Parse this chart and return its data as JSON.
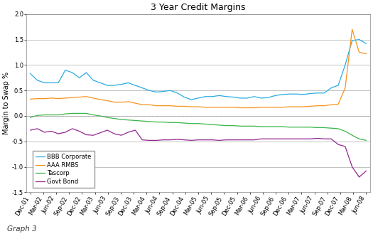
{
  "title": "3 Year Credit Margins",
  "ylabel": "Margin to Swap %",
  "footnote": "Graph 3",
  "ylim": [
    -1.5,
    2.0
  ],
  "yticks": [
    -1.5,
    -1.0,
    -0.5,
    0.0,
    0.5,
    1.0,
    1.5,
    2.0
  ],
  "x_labels": [
    "Dec-01",
    "Mar-02",
    "Jun-02",
    "Sep-02",
    "Dec-02",
    "Mar-03",
    "Jun-03",
    "Sep-03",
    "Dec-03",
    "Mar-04",
    "Jun-04",
    "Sep-04",
    "Dec-04",
    "Mar-05",
    "Jun-05",
    "Sep-05",
    "Dec-05",
    "Mar-06",
    "Jun-06",
    "Sep-06",
    "Dec-06",
    "Mar-07",
    "Jun-07",
    "Sep-07",
    "Dec-07",
    "Mar-08",
    "Jun-08"
  ],
  "colors": {
    "bbb": "#29ABE2",
    "aaa": "#F7941D",
    "tascorp": "#39B54A",
    "govt": "#92278F"
  },
  "legend": [
    "BBB Corporate",
    "AAA RMBS",
    "Tascorp",
    "Govt Bond"
  ],
  "bbb_data": [
    0.83,
    0.7,
    0.65,
    0.65,
    0.65,
    0.9,
    0.85,
    0.75,
    0.85,
    0.7,
    0.65,
    0.6,
    0.6,
    0.62,
    0.65,
    0.6,
    0.55,
    0.5,
    0.47,
    0.48,
    0.5,
    0.45,
    0.37,
    0.32,
    0.35,
    0.38,
    0.38,
    0.4,
    0.38,
    0.37,
    0.35,
    0.35,
    0.38,
    0.35,
    0.36,
    0.4,
    0.42,
    0.43,
    0.43,
    0.42,
    0.44,
    0.45,
    0.45,
    0.55,
    0.6,
    1.0,
    1.48,
    1.5,
    1.42
  ],
  "aaa_data": [
    0.33,
    0.34,
    0.34,
    0.35,
    0.34,
    0.35,
    0.36,
    0.37,
    0.38,
    0.35,
    0.32,
    0.3,
    0.27,
    0.27,
    0.28,
    0.25,
    0.22,
    0.22,
    0.2,
    0.2,
    0.2,
    0.19,
    0.19,
    0.18,
    0.18,
    0.17,
    0.17,
    0.17,
    0.17,
    0.17,
    0.16,
    0.16,
    0.16,
    0.17,
    0.17,
    0.17,
    0.17,
    0.18,
    0.18,
    0.18,
    0.19,
    0.2,
    0.2,
    0.22,
    0.23,
    0.55,
    1.7,
    1.25,
    1.22
  ],
  "tascorp_data": [
    -0.03,
    0.01,
    0.02,
    0.02,
    0.02,
    0.04,
    0.05,
    0.05,
    0.05,
    0.02,
    0.0,
    -0.03,
    -0.05,
    -0.07,
    -0.08,
    -0.09,
    -0.1,
    -0.11,
    -0.12,
    -0.12,
    -0.13,
    -0.13,
    -0.14,
    -0.15,
    -0.15,
    -0.16,
    -0.17,
    -0.18,
    -0.19,
    -0.19,
    -0.2,
    -0.2,
    -0.2,
    -0.21,
    -0.21,
    -0.21,
    -0.21,
    -0.22,
    -0.22,
    -0.22,
    -0.22,
    -0.23,
    -0.23,
    -0.24,
    -0.25,
    -0.3,
    -0.38,
    -0.45,
    -0.48
  ],
  "govt_data": [
    -0.28,
    -0.25,
    -0.32,
    -0.3,
    -0.35,
    -0.32,
    -0.25,
    -0.3,
    -0.37,
    -0.38,
    -0.33,
    -0.28,
    -0.35,
    -0.38,
    -0.32,
    -0.28,
    -0.47,
    -0.48,
    -0.48,
    -0.47,
    -0.47,
    -0.46,
    -0.47,
    -0.48,
    -0.47,
    -0.47,
    -0.47,
    -0.48,
    -0.47,
    -0.47,
    -0.47,
    -0.47,
    -0.47,
    -0.45,
    -0.45,
    -0.45,
    -0.45,
    -0.45,
    -0.45,
    -0.45,
    -0.45,
    -0.44,
    -0.45,
    -0.45,
    -0.56,
    -0.6,
    -1.0,
    -1.2,
    -1.08
  ],
  "background_color": "#FFFFFF",
  "plot_bg_color": "#FFFFFF",
  "grid_color": "#AAAAAA",
  "title_fontsize": 9,
  "axis_fontsize": 6,
  "ylabel_fontsize": 7,
  "legend_fontsize": 6
}
